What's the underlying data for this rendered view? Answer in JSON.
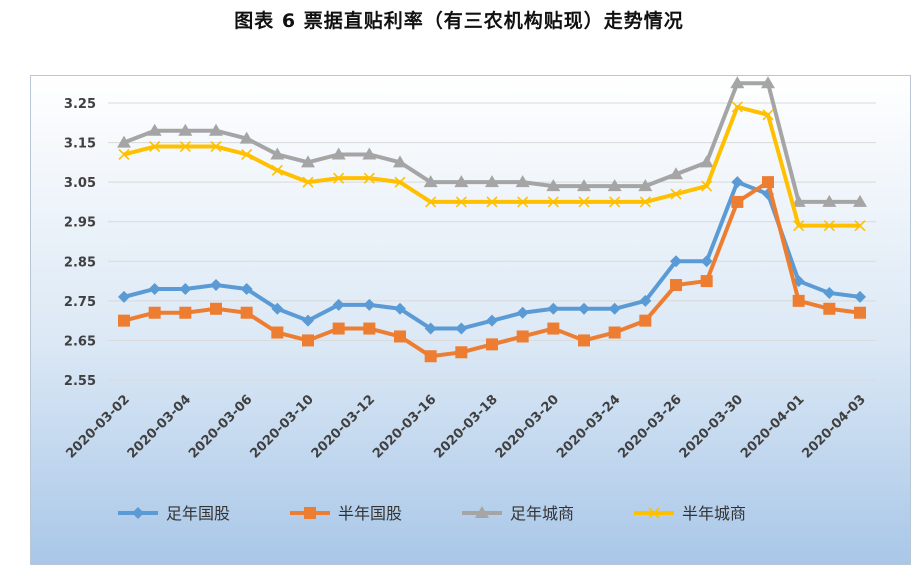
{
  "title": "图表 6  票据直贴利率（有三农机构贴现）走势情况",
  "chart_data": {
    "type": "line",
    "title": "图表 6  票据直贴利率（有三农机构贴现）走势情况",
    "xlabel": "",
    "ylabel": "",
    "x_tick_labels": [
      "2020-03-02",
      "2020-03-04",
      "2020-03-06",
      "2020-03-10",
      "2020-03-12",
      "2020-03-16",
      "2020-03-18",
      "2020-03-20",
      "2020-03-24",
      "2020-03-26",
      "2020-03-30",
      "2020-04-01",
      "2020-04-03"
    ],
    "y_tick_labels": [
      "3.25",
      "3.15",
      "3.05",
      "2.95",
      "2.85",
      "2.75",
      "2.65",
      "2.55"
    ],
    "ylim": [
      2.55,
      3.25
    ],
    "grid": true,
    "legend_position": "bottom",
    "colors": {
      "s1": "#5b9bd5",
      "s2": "#ed7d31",
      "s3": "#a5a5a5",
      "s4": "#ffc000"
    },
    "series": [
      {
        "name": "足年国股",
        "marker": "diamond",
        "color": "#5b9bd5",
        "values": [
          2.76,
          2.78,
          2.78,
          2.79,
          2.78,
          2.73,
          2.7,
          2.74,
          2.74,
          2.73,
          2.68,
          2.68,
          2.7,
          2.72,
          2.73,
          2.73,
          2.73,
          2.75,
          2.85,
          2.85,
          3.05,
          3.02,
          2.8,
          2.77,
          2.76
        ]
      },
      {
        "name": "半年国股",
        "marker": "square",
        "color": "#ed7d31",
        "values": [
          2.7,
          2.72,
          2.72,
          2.73,
          2.72,
          2.67,
          2.65,
          2.68,
          2.68,
          2.66,
          2.61,
          2.62,
          2.64,
          2.66,
          2.68,
          2.65,
          2.67,
          2.7,
          2.79,
          2.8,
          3.0,
          3.05,
          2.75,
          2.73,
          2.72
        ]
      },
      {
        "name": "足年城商",
        "marker": "triangle",
        "color": "#a5a5a5",
        "values": [
          3.15,
          3.18,
          3.18,
          3.18,
          3.16,
          3.12,
          3.1,
          3.12,
          3.12,
          3.1,
          3.05,
          3.05,
          3.05,
          3.05,
          3.04,
          3.04,
          3.04,
          3.04,
          3.07,
          3.1,
          3.3,
          3.3,
          3.0,
          3.0,
          3.0
        ]
      },
      {
        "name": "半年城商",
        "marker": "x",
        "color": "#ffc000",
        "values": [
          3.12,
          3.14,
          3.14,
          3.14,
          3.12,
          3.08,
          3.05,
          3.06,
          3.06,
          3.05,
          3.0,
          3.0,
          3.0,
          3.0,
          3.0,
          3.0,
          3.0,
          3.0,
          3.02,
          3.04,
          3.24,
          3.22,
          2.94,
          2.94,
          2.94
        ]
      }
    ]
  }
}
